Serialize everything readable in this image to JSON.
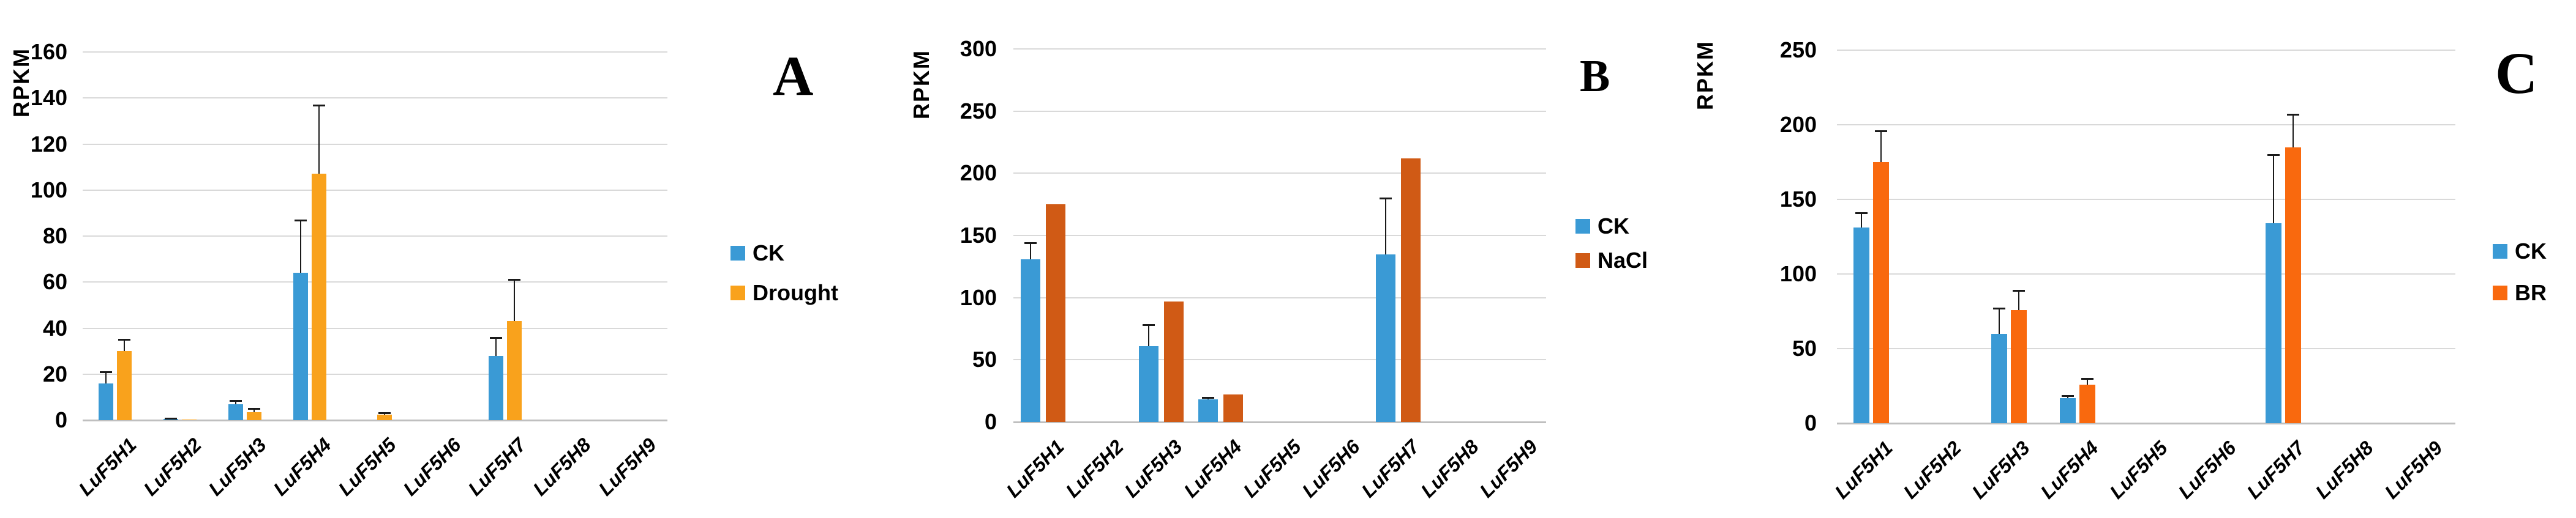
{
  "figure": {
    "description_visible_text_only": "Three grouped bar charts labeled A, B and C showing RPKM expression of nine LuF5H genes under control and stress treatments",
    "y_axis_title": "RPKM"
  },
  "chart_data": [
    {
      "type": "bar",
      "panel_label": "A",
      "title": "",
      "xlabel": "",
      "ylabel": "RPKM",
      "ylim": [
        0,
        160
      ],
      "y_step": 20,
      "grid": true,
      "legend_position": "right",
      "categories": [
        "LuF5H1",
        "LuF5H2",
        "LuF5H3",
        "LuF5H4",
        "LuF5H5",
        "LuF5H6",
        "LuF5H7",
        "LuF5H8",
        "LuF5H9"
      ],
      "series": [
        {
          "name": "CK",
          "color": "#3A9AD5",
          "values": [
            16,
            0.4,
            7,
            64,
            0,
            0,
            28,
            0,
            0
          ],
          "error_top": [
            21,
            0.8,
            8.5,
            87,
            0,
            0,
            36,
            0,
            0
          ]
        },
        {
          "name": "Drought",
          "color": "#F9A21C",
          "values": [
            30,
            0.15,
            3.5,
            107,
            2.5,
            0,
            43,
            0,
            0
          ],
          "error_top": [
            35,
            0,
            5,
            137,
            3.3,
            0,
            61,
            0,
            0
          ]
        }
      ]
    },
    {
      "type": "bar",
      "panel_label": "B",
      "title": "",
      "xlabel": "",
      "ylabel": "RPKM",
      "ylim": [
        0,
        300
      ],
      "y_step": 50,
      "grid": true,
      "legend_position": "right",
      "categories": [
        "LuF5H1",
        "LuF5H2",
        "LuF5H3",
        "LuF5H4",
        "LuF5H5",
        "LuF5H6",
        "LuF5H7",
        "LuF5H8",
        "LuF5H9"
      ],
      "series": [
        {
          "name": "CK",
          "color": "#3A9AD5",
          "values": [
            131,
            0,
            61,
            18,
            0,
            0,
            135,
            0,
            0
          ],
          "error_top": [
            144,
            0,
            78,
            19.5,
            0,
            0,
            180,
            0,
            0
          ]
        },
        {
          "name": "NaCl",
          "color": "#D05A15",
          "values": [
            175,
            0,
            97,
            22,
            0,
            0,
            212,
            0,
            0
          ],
          "error_top": [
            0,
            0,
            0,
            0,
            0,
            0,
            0,
            0,
            0
          ]
        }
      ]
    },
    {
      "type": "bar",
      "panel_label": "C",
      "title": "",
      "xlabel": "",
      "ylabel": "RPKM",
      "ylim": [
        0,
        250
      ],
      "y_step": 50,
      "grid": true,
      "legend_position": "right",
      "categories": [
        "LuF5H1",
        "LuF5H2",
        "LuF5H3",
        "LuF5H4",
        "LuF5H5",
        "LuF5H6",
        "LuF5H7",
        "LuF5H8",
        "LuF5H9"
      ],
      "series": [
        {
          "name": "CK",
          "color": "#3A9AD5",
          "values": [
            131,
            0,
            60,
            17,
            0,
            0,
            134,
            0,
            0
          ],
          "error_top": [
            141,
            0,
            77,
            18.5,
            0,
            0,
            180,
            0,
            0
          ]
        },
        {
          "name": "BR",
          "color": "#F9690E",
          "values": [
            175,
            0,
            76,
            26,
            0,
            0,
            185,
            0,
            0
          ],
          "error_top": [
            196,
            0,
            89,
            30,
            0,
            0,
            207,
            0,
            0
          ]
        }
      ]
    }
  ],
  "colors": {
    "gridline": "#D9D9D9",
    "axis_baseline": "#BFBFBF",
    "error_bar": "#1a1a1a",
    "text": "#000000",
    "background": "#ffffff"
  }
}
